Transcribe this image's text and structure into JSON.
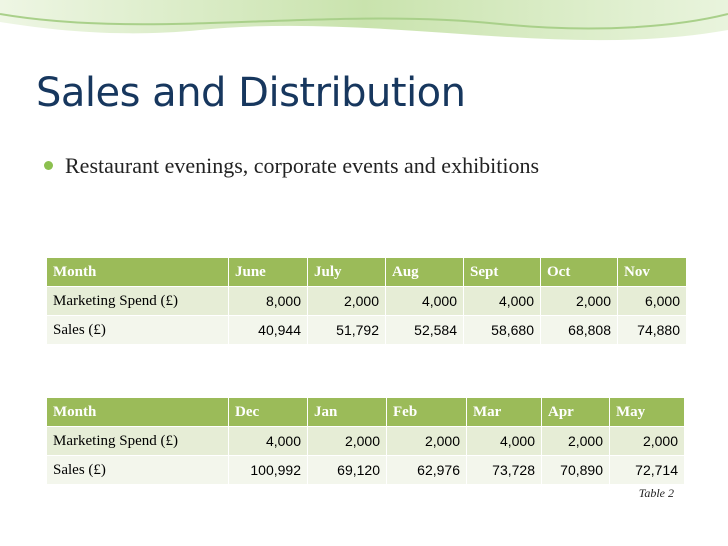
{
  "header": {
    "title": "Sales and Distribution",
    "bullet": "Restaurant evenings, corporate events and exhibitions"
  },
  "tables": [
    {
      "header": [
        "Month",
        "June",
        "July",
        "Aug",
        "Sept",
        "Oct",
        "Nov"
      ],
      "rows": [
        [
          "Marketing Spend (£)",
          "8,000",
          "2,000",
          "4,000",
          "4,000",
          "2,000",
          "6,000"
        ],
        [
          "Sales (£)",
          "40,944",
          "51,792",
          "52,584",
          "58,680",
          "68,808",
          "74,880"
        ]
      ]
    },
    {
      "header": [
        "Month",
        "Dec",
        "Jan",
        "Feb",
        "Mar",
        "Apr",
        "May"
      ],
      "rows": [
        [
          "Marketing Spend (£)",
          "4,000",
          "2,000",
          "2,000",
          "4,000",
          "2,000",
          "2,000"
        ],
        [
          "Sales (£)",
          "100,992",
          "69,120",
          "62,976",
          "73,728",
          "70,890",
          "72,714"
        ]
      ]
    }
  ],
  "caption": "Table 2"
}
